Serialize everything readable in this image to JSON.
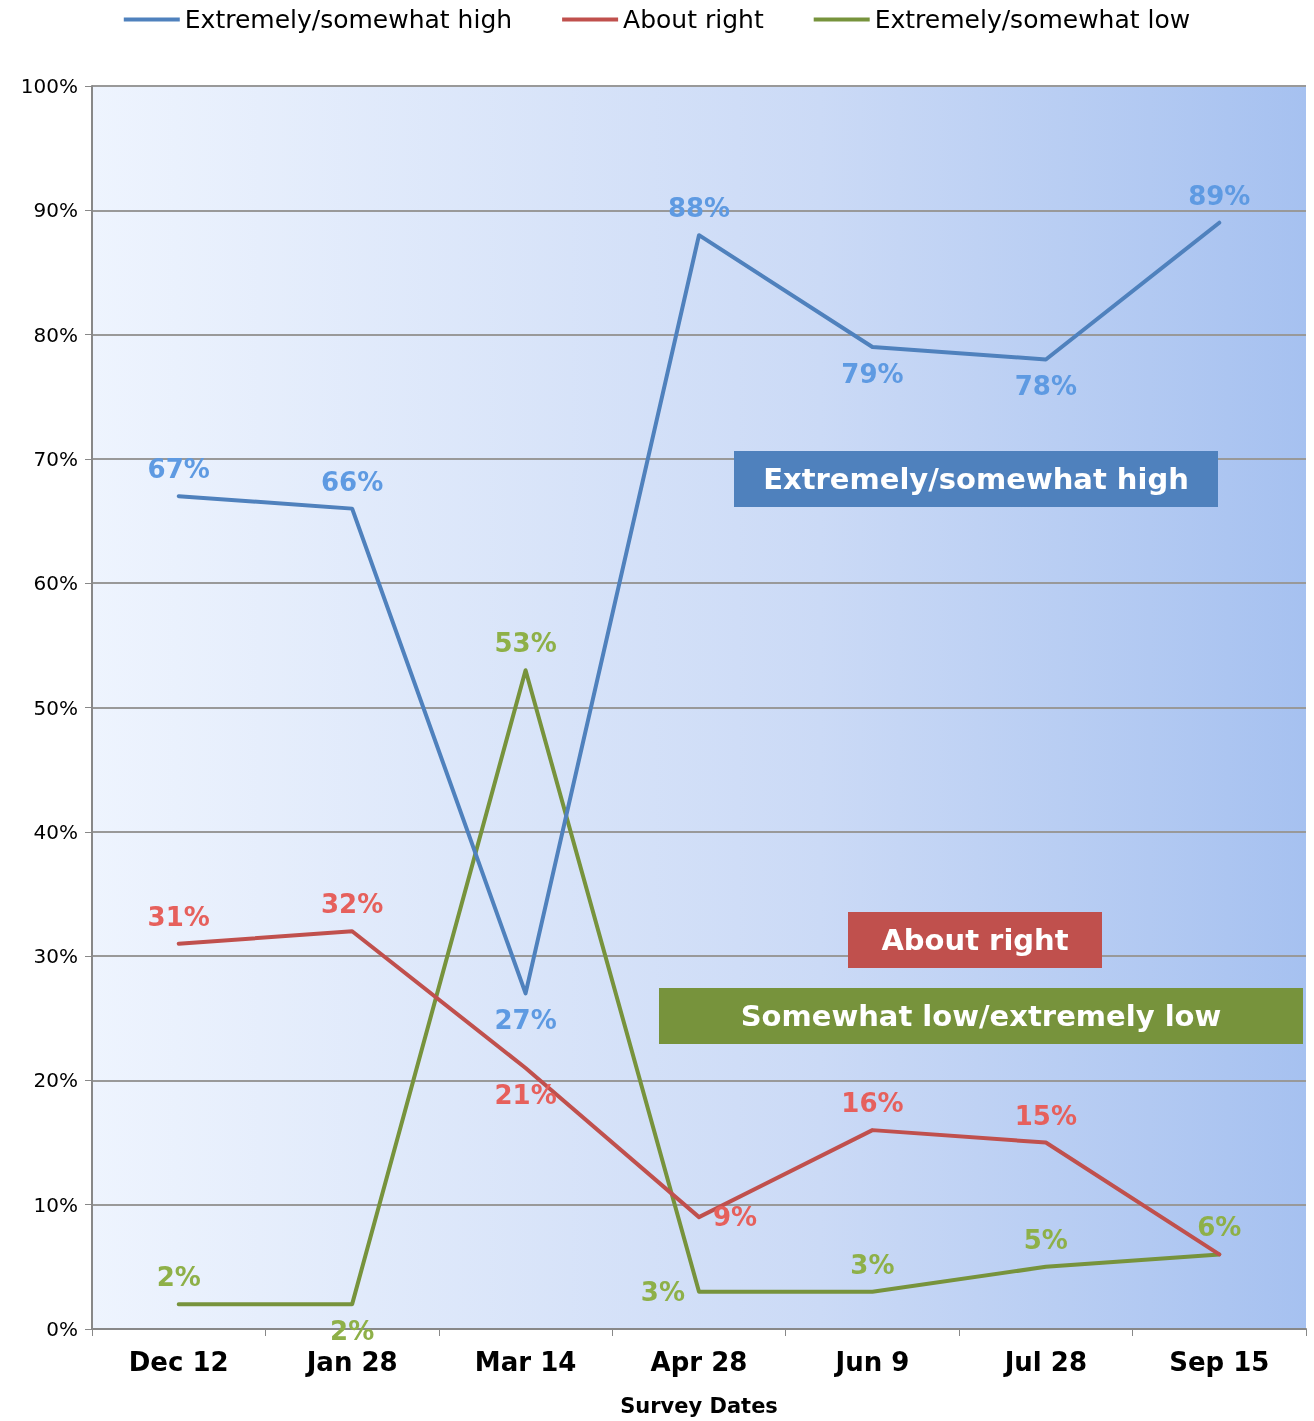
{
  "chart_data": {
    "type": "line",
    "xlabel": "Survey Dates",
    "categories": [
      "Dec 12",
      "Jan 28",
      "Mar 14",
      "Apr 28",
      "Jun 9",
      "Jul 28",
      "Sep 15"
    ],
    "series": [
      {
        "name": "Extremely/somewhat high",
        "color": "#4f81bd",
        "values": [
          67,
          66,
          27,
          88,
          79,
          78,
          89
        ],
        "value_labels": [
          "67%",
          "66%",
          "27%",
          "88%",
          "79%",
          "78%",
          "89%"
        ]
      },
      {
        "name": "About right",
        "color": "#c0504d",
        "values": [
          31,
          32,
          21,
          9,
          16,
          15,
          6
        ],
        "value_labels": [
          "31%",
          "32%",
          "21%",
          "9%",
          "16%",
          "15%",
          null
        ]
      },
      {
        "name": "Extremely/somewhat low",
        "color": "#77933c",
        "values": [
          2,
          2,
          53,
          3,
          3,
          5,
          6
        ],
        "value_labels": [
          "2%",
          "2%",
          "53%",
          "3%",
          "3%",
          "5%",
          "6%"
        ]
      }
    ],
    "ylim": [
      0,
      100
    ],
    "yticks": [
      {
        "value": 0,
        "label": "0%"
      },
      {
        "value": 10,
        "label": "10%"
      },
      {
        "value": 20,
        "label": "20%"
      },
      {
        "value": 30,
        "label": "30%"
      },
      {
        "value": 40,
        "label": "40%"
      },
      {
        "value": 50,
        "label": "50%"
      },
      {
        "value": 60,
        "label": "60%"
      },
      {
        "value": 70,
        "label": "70%"
      },
      {
        "value": 80,
        "label": "80%"
      },
      {
        "value": 90,
        "label": "90%"
      },
      {
        "value": 100,
        "label": "100%"
      }
    ],
    "annotations": [
      "Extremely/somewhat high",
      "About right",
      "Somewhat low/extremely low"
    ],
    "grid": "y",
    "legend": "top",
    "marker": "none",
    "line_style": "solid"
  }
}
